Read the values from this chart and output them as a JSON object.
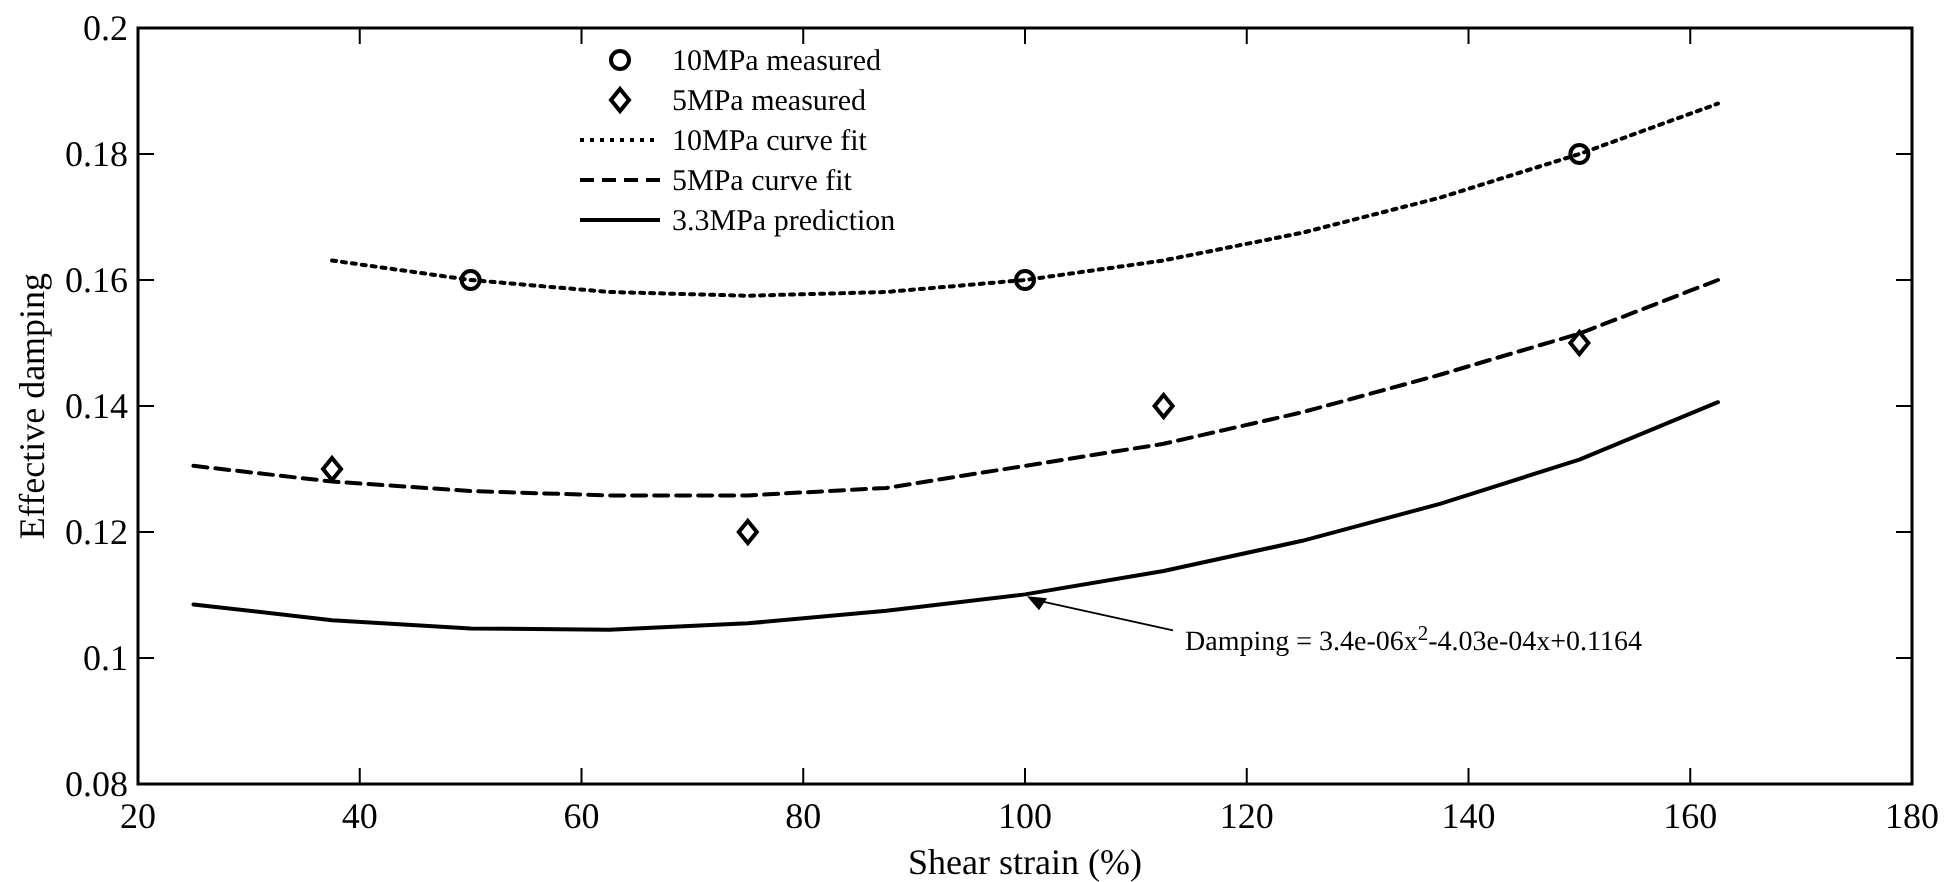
{
  "chart_data": {
    "type": "line",
    "xlabel": "Shear strain (%)",
    "ylabel": "Effective damping",
    "xlim": [
      20,
      180
    ],
    "xticks": [
      20,
      40,
      60,
      80,
      100,
      120,
      140,
      160,
      180
    ],
    "ylim": [
      0.08,
      0.2
    ],
    "yticks": [
      0.08,
      0.1,
      0.12,
      0.14,
      0.16,
      0.18,
      0.2
    ],
    "legend": "top",
    "grid": false,
    "series": [
      {
        "name": "10MPa measured",
        "type": "scatter",
        "marker": "circle",
        "color": "#000000",
        "x": [
          50,
          100,
          150
        ],
        "values": [
          0.16,
          0.16,
          0.18
        ]
      },
      {
        "name": "5MPa measured",
        "type": "scatter",
        "marker": "diamond",
        "color": "#000000",
        "x": [
          37.5,
          75,
          112.5,
          150
        ],
        "values": [
          0.13,
          0.12,
          0.14,
          0.15
        ]
      },
      {
        "name": "10MPa curve fit",
        "line_style": "dotted",
        "marker": "none",
        "color": "#000000",
        "x": [
          37.5,
          50,
          62.5,
          75,
          87.5,
          100,
          112.5,
          125,
          137.5,
          150,
          162.5
        ],
        "values": [
          0.1631,
          0.16,
          0.1581,
          0.1575,
          0.1581,
          0.16,
          0.1631,
          0.1675,
          0.1731,
          0.18,
          0.188
        ]
      },
      {
        "name": "5MPa curve fit",
        "line_style": "dashed",
        "marker": "none",
        "color": "#000000",
        "x": [
          25,
          37.5,
          50,
          62.5,
          75,
          87.5,
          100,
          112.5,
          125,
          137.5,
          150,
          162.5
        ],
        "values": [
          0.1305,
          0.128,
          0.1265,
          0.1258,
          0.1258,
          0.127,
          0.1305,
          0.134,
          0.139,
          0.145,
          0.1515,
          0.16
        ]
      },
      {
        "name": "3.3MPa prediction",
        "line_style": "solid",
        "marker": "none",
        "color": "#000000",
        "x": [
          25,
          37.5,
          50,
          62.5,
          75,
          87.5,
          100,
          112.5,
          125,
          137.5,
          150,
          162.5
        ],
        "values": [
          0.1085,
          0.106,
          0.1047,
          0.1045,
          0.1055,
          0.1075,
          0.1101,
          0.1138,
          0.1186,
          0.1245,
          0.1315,
          0.1406
        ]
      }
    ],
    "annotations": [
      {
        "text": "Damping = 3.4e-06x$^{2}$-4.03e-04x+0.1164",
        "x": 100,
        "y": 0.1101
      }
    ]
  }
}
